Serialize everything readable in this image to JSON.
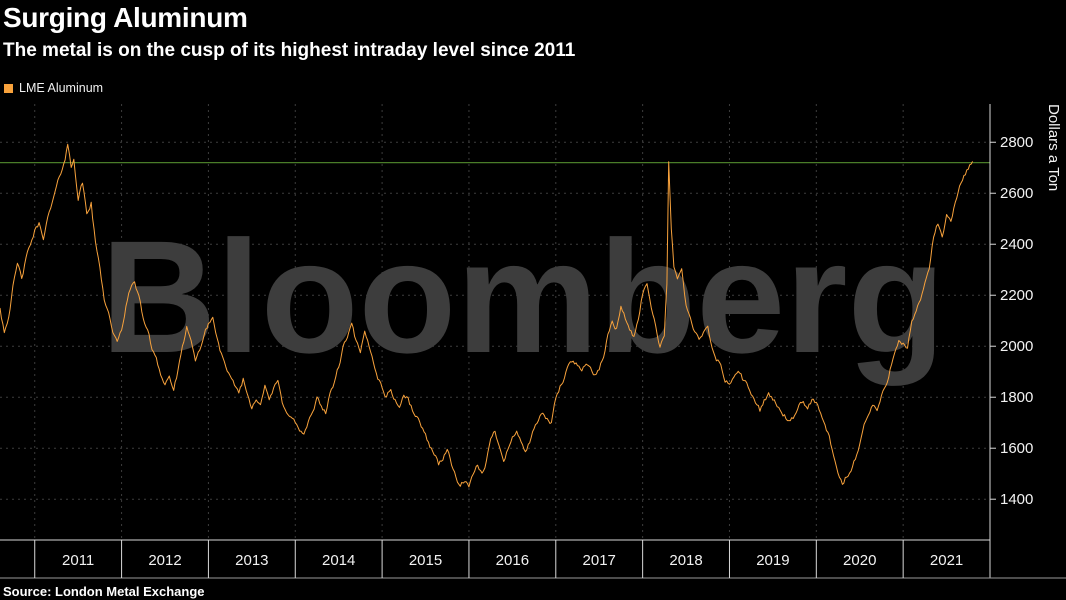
{
  "header": {
    "title": "Surging Aluminum",
    "subtitle": "The metal is on the cusp of its highest intraday level since 2011"
  },
  "legend": {
    "label": "LME Aluminum"
  },
  "watermark": "Bloomberg",
  "source": "Source: London Metal Exchange",
  "colors": {
    "background": "#000000",
    "series": "#f8a23c",
    "reference_line": "#4a7d29",
    "watermark": "#3d3d3d",
    "axis": "#d9d9d9",
    "grid": "#3d3d3d",
    "tick_text": "#f2f2f2"
  },
  "chart_data": {
    "type": "line",
    "title": "Surging Aluminum",
    "subtitle": "The metal is on the cusp of its highest intraday level since 2011",
    "ylabel": "Dollars a Ton",
    "xlabel": "",
    "ylim": [
      1240,
      2950
    ],
    "xlim": [
      2010.6,
      2022.0
    ],
    "y_ticks": [
      1400,
      1600,
      1800,
      2000,
      2200,
      2400,
      2600,
      2800
    ],
    "x_ticks": [
      2011,
      2012,
      2013,
      2014,
      2015,
      2016,
      2017,
      2018,
      2019,
      2020,
      2021
    ],
    "x_tick_labels": [
      "2011",
      "2012",
      "2013",
      "2014",
      "2015",
      "2016",
      "2017",
      "2018",
      "2019",
      "2020",
      "2021"
    ],
    "grid": true,
    "legend_position": "top-left",
    "reference_line": {
      "value": 2720,
      "color": "#4a7d29"
    },
    "series": [
      {
        "name": "LME Aluminum",
        "color": "#f8a23c",
        "points": [
          [
            2010.6,
            2150
          ],
          [
            2010.65,
            2060
          ],
          [
            2010.7,
            2120
          ],
          [
            2010.75,
            2230
          ],
          [
            2010.8,
            2320
          ],
          [
            2010.85,
            2270
          ],
          [
            2010.9,
            2340
          ],
          [
            2010.95,
            2400
          ],
          [
            2011.0,
            2450
          ],
          [
            2011.05,
            2480
          ],
          [
            2011.1,
            2430
          ],
          [
            2011.15,
            2500
          ],
          [
            2011.2,
            2560
          ],
          [
            2011.25,
            2620
          ],
          [
            2011.3,
            2680
          ],
          [
            2011.35,
            2740
          ],
          [
            2011.38,
            2790
          ],
          [
            2011.42,
            2700
          ],
          [
            2011.45,
            2740
          ],
          [
            2011.5,
            2580
          ],
          [
            2011.55,
            2640
          ],
          [
            2011.6,
            2520
          ],
          [
            2011.65,
            2560
          ],
          [
            2011.7,
            2400
          ],
          [
            2011.75,
            2310
          ],
          [
            2011.8,
            2190
          ],
          [
            2011.85,
            2130
          ],
          [
            2011.9,
            2060
          ],
          [
            2011.95,
            2010
          ],
          [
            2012.0,
            2060
          ],
          [
            2012.05,
            2160
          ],
          [
            2012.1,
            2220
          ],
          [
            2012.15,
            2260
          ],
          [
            2012.2,
            2190
          ],
          [
            2012.25,
            2110
          ],
          [
            2012.3,
            2060
          ],
          [
            2012.35,
            1990
          ],
          [
            2012.4,
            1960
          ],
          [
            2012.45,
            1890
          ],
          [
            2012.5,
            1850
          ],
          [
            2012.55,
            1880
          ],
          [
            2012.6,
            1830
          ],
          [
            2012.65,
            1900
          ],
          [
            2012.7,
            1990
          ],
          [
            2012.75,
            2080
          ],
          [
            2012.8,
            2010
          ],
          [
            2012.85,
            1940
          ],
          [
            2012.9,
            1990
          ],
          [
            2012.95,
            2040
          ],
          [
            2013.0,
            2090
          ],
          [
            2013.05,
            2110
          ],
          [
            2013.1,
            2030
          ],
          [
            2013.15,
            1970
          ],
          [
            2013.2,
            1910
          ],
          [
            2013.25,
            1870
          ],
          [
            2013.3,
            1850
          ],
          [
            2013.35,
            1820
          ],
          [
            2013.4,
            1870
          ],
          [
            2013.45,
            1810
          ],
          [
            2013.5,
            1760
          ],
          [
            2013.55,
            1800
          ],
          [
            2013.6,
            1780
          ],
          [
            2013.65,
            1840
          ],
          [
            2013.7,
            1790
          ],
          [
            2013.75,
            1830
          ],
          [
            2013.8,
            1860
          ],
          [
            2013.85,
            1780
          ],
          [
            2013.9,
            1750
          ],
          [
            2013.95,
            1720
          ],
          [
            2014.0,
            1700
          ],
          [
            2014.05,
            1670
          ],
          [
            2014.1,
            1650
          ],
          [
            2014.15,
            1700
          ],
          [
            2014.2,
            1730
          ],
          [
            2014.25,
            1800
          ],
          [
            2014.3,
            1770
          ],
          [
            2014.35,
            1740
          ],
          [
            2014.4,
            1810
          ],
          [
            2014.45,
            1860
          ],
          [
            2014.5,
            1920
          ],
          [
            2014.55,
            1990
          ],
          [
            2014.6,
            2040
          ],
          [
            2014.65,
            2080
          ],
          [
            2014.7,
            2020
          ],
          [
            2014.75,
            1970
          ],
          [
            2014.8,
            2050
          ],
          [
            2014.85,
            2000
          ],
          [
            2014.9,
            1940
          ],
          [
            2014.95,
            1880
          ],
          [
            2015.0,
            1840
          ],
          [
            2015.05,
            1800
          ],
          [
            2015.1,
            1830
          ],
          [
            2015.15,
            1790
          ],
          [
            2015.2,
            1760
          ],
          [
            2015.25,
            1810
          ],
          [
            2015.3,
            1790
          ],
          [
            2015.35,
            1750
          ],
          [
            2015.4,
            1720
          ],
          [
            2015.45,
            1690
          ],
          [
            2015.5,
            1650
          ],
          [
            2015.55,
            1610
          ],
          [
            2015.6,
            1580
          ],
          [
            2015.65,
            1540
          ],
          [
            2015.7,
            1560
          ],
          [
            2015.75,
            1600
          ],
          [
            2015.8,
            1530
          ],
          [
            2015.85,
            1490
          ],
          [
            2015.9,
            1450
          ],
          [
            2015.95,
            1470
          ],
          [
            2016.0,
            1450
          ],
          [
            2016.05,
            1490
          ],
          [
            2016.1,
            1530
          ],
          [
            2016.15,
            1500
          ],
          [
            2016.2,
            1550
          ],
          [
            2016.25,
            1630
          ],
          [
            2016.3,
            1670
          ],
          [
            2016.35,
            1610
          ],
          [
            2016.4,
            1560
          ],
          [
            2016.45,
            1600
          ],
          [
            2016.5,
            1640
          ],
          [
            2016.55,
            1660
          ],
          [
            2016.6,
            1630
          ],
          [
            2016.65,
            1590
          ],
          [
            2016.7,
            1620
          ],
          [
            2016.75,
            1670
          ],
          [
            2016.8,
            1710
          ],
          [
            2016.85,
            1740
          ],
          [
            2016.9,
            1710
          ],
          [
            2016.95,
            1700
          ],
          [
            2017.0,
            1790
          ],
          [
            2017.05,
            1840
          ],
          [
            2017.1,
            1870
          ],
          [
            2017.15,
            1930
          ],
          [
            2017.2,
            1950
          ],
          [
            2017.25,
            1930
          ],
          [
            2017.3,
            1900
          ],
          [
            2017.35,
            1940
          ],
          [
            2017.4,
            1910
          ],
          [
            2017.45,
            1880
          ],
          [
            2017.5,
            1910
          ],
          [
            2017.55,
            1960
          ],
          [
            2017.6,
            2040
          ],
          [
            2017.65,
            2100
          ],
          [
            2017.7,
            2070
          ],
          [
            2017.75,
            2150
          ],
          [
            2017.8,
            2110
          ],
          [
            2017.85,
            2070
          ],
          [
            2017.9,
            2030
          ],
          [
            2017.95,
            2110
          ],
          [
            2018.0,
            2210
          ],
          [
            2018.05,
            2240
          ],
          [
            2018.1,
            2160
          ],
          [
            2018.15,
            2080
          ],
          [
            2018.2,
            2000
          ],
          [
            2018.25,
            2050
          ],
          [
            2018.28,
            2250
          ],
          [
            2018.3,
            2718
          ],
          [
            2018.33,
            2450
          ],
          [
            2018.36,
            2310
          ],
          [
            2018.4,
            2270
          ],
          [
            2018.45,
            2300
          ],
          [
            2018.5,
            2160
          ],
          [
            2018.55,
            2100
          ],
          [
            2018.6,
            2060
          ],
          [
            2018.65,
            2020
          ],
          [
            2018.7,
            2050
          ],
          [
            2018.75,
            2070
          ],
          [
            2018.8,
            1990
          ],
          [
            2018.85,
            1950
          ],
          [
            2018.9,
            1930
          ],
          [
            2018.95,
            1860
          ],
          [
            2019.0,
            1850
          ],
          [
            2019.05,
            1880
          ],
          [
            2019.1,
            1910
          ],
          [
            2019.15,
            1870
          ],
          [
            2019.2,
            1850
          ],
          [
            2019.25,
            1810
          ],
          [
            2019.3,
            1780
          ],
          [
            2019.35,
            1750
          ],
          [
            2019.4,
            1790
          ],
          [
            2019.45,
            1810
          ],
          [
            2019.5,
            1790
          ],
          [
            2019.55,
            1770
          ],
          [
            2019.6,
            1740
          ],
          [
            2019.65,
            1720
          ],
          [
            2019.7,
            1700
          ],
          [
            2019.75,
            1720
          ],
          [
            2019.8,
            1760
          ],
          [
            2019.85,
            1780
          ],
          [
            2019.9,
            1760
          ],
          [
            2019.95,
            1790
          ],
          [
            2020.0,
            1780
          ],
          [
            2020.05,
            1730
          ],
          [
            2020.1,
            1690
          ],
          [
            2020.15,
            1640
          ],
          [
            2020.2,
            1560
          ],
          [
            2020.25,
            1500
          ],
          [
            2020.3,
            1460
          ],
          [
            2020.35,
            1490
          ],
          [
            2020.4,
            1510
          ],
          [
            2020.45,
            1560
          ],
          [
            2020.5,
            1620
          ],
          [
            2020.55,
            1690
          ],
          [
            2020.6,
            1730
          ],
          [
            2020.65,
            1770
          ],
          [
            2020.7,
            1750
          ],
          [
            2020.75,
            1800
          ],
          [
            2020.8,
            1840
          ],
          [
            2020.85,
            1910
          ],
          [
            2020.9,
            1980
          ],
          [
            2020.95,
            2030
          ],
          [
            2021.0,
            2010
          ],
          [
            2021.05,
            1990
          ],
          [
            2021.1,
            2090
          ],
          [
            2021.15,
            2130
          ],
          [
            2021.2,
            2180
          ],
          [
            2021.25,
            2250
          ],
          [
            2021.3,
            2310
          ],
          [
            2021.35,
            2430
          ],
          [
            2021.4,
            2480
          ],
          [
            2021.45,
            2430
          ],
          [
            2021.5,
            2510
          ],
          [
            2021.55,
            2480
          ],
          [
            2021.6,
            2570
          ],
          [
            2021.65,
            2620
          ],
          [
            2021.7,
            2660
          ],
          [
            2021.75,
            2700
          ],
          [
            2021.8,
            2725
          ]
        ]
      }
    ]
  }
}
